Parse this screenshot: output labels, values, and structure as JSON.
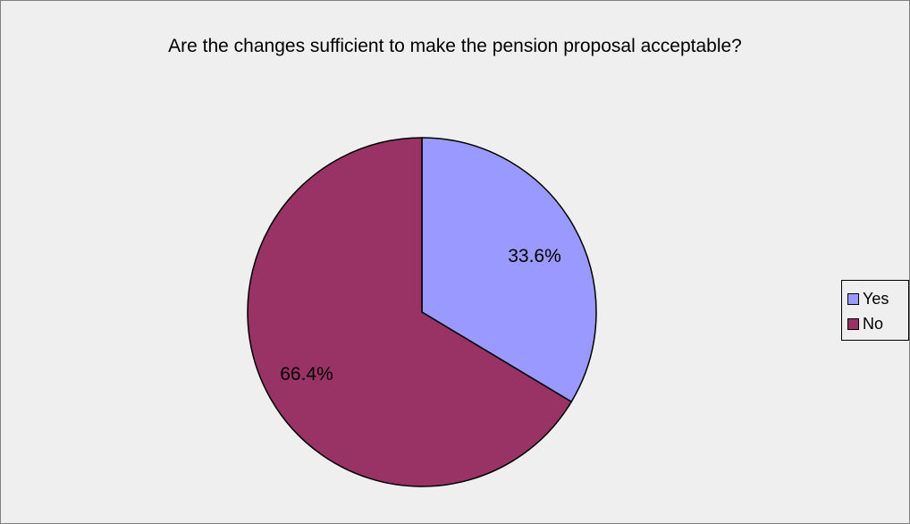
{
  "chart_data": {
    "type": "pie",
    "title": "Are the changes sufficient to make the pension proposal acceptable?",
    "categories": [
      "Yes",
      "No"
    ],
    "values": [
      33.6,
      66.4
    ],
    "value_labels": [
      "33.6%",
      "66.4%"
    ],
    "colors": [
      "#9999ff",
      "#993366"
    ],
    "legend_position": "right"
  }
}
